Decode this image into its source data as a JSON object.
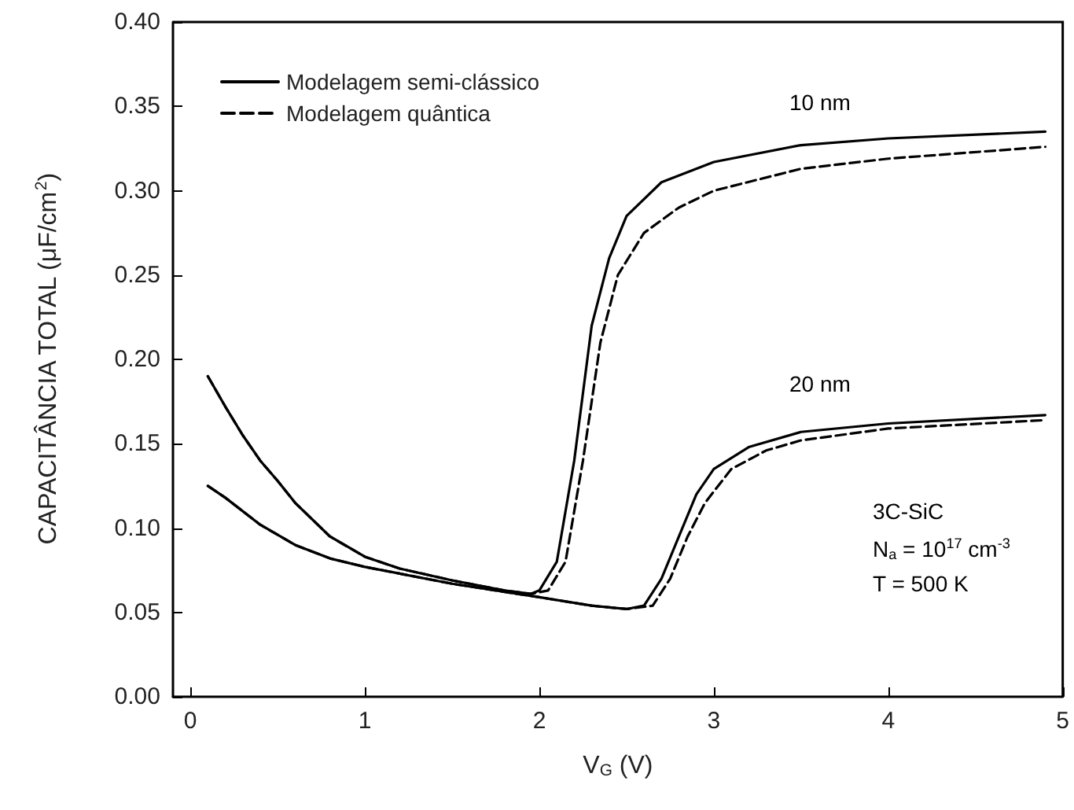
{
  "chart_data": {
    "type": "line",
    "xlabel": "V$_{G}$ (V)",
    "ylabel": "CAPACITÂNCIA TOTAL (μF/cm$^{2}$)",
    "xlim": [
      -0.1,
      5
    ],
    "xticks": [
      0,
      1,
      2,
      3,
      4,
      5
    ],
    "ylim": [
      0,
      0.4
    ],
    "yticks": [
      {
        "value": 0,
        "label": "0.00"
      },
      {
        "value": 0.05,
        "label": "0.05"
      },
      {
        "value": 0.1,
        "label": "0.10"
      },
      {
        "value": 0.15,
        "label": "0.15"
      },
      {
        "value": 0.2,
        "label": "0.20"
      },
      {
        "value": 0.25,
        "label": "0.25"
      },
      {
        "value": 0.3,
        "label": "0.30"
      },
      {
        "value": 0.35,
        "label": "0.35"
      },
      {
        "value": 0.4,
        "label": "0.40"
      }
    ],
    "grid": false,
    "legend": "top left",
    "marker": "none",
    "series": [
      {
        "name": "Modelagem semi-clássico",
        "color": "#000000",
        "line_style": "solid",
        "x": [
          0.1,
          0.2,
          0.3,
          0.4,
          0.5,
          0.6,
          0.8,
          1.0,
          1.2,
          1.5,
          1.8,
          1.95,
          2.0,
          2.1,
          2.2,
          2.3,
          2.4,
          2.5,
          2.7,
          3.0,
          3.5,
          4.0,
          4.9
        ],
        "values": [
          0.19,
          0.172,
          0.155,
          0.14,
          0.128,
          0.115,
          0.095,
          0.083,
          0.076,
          0.069,
          0.063,
          0.061,
          0.063,
          0.08,
          0.14,
          0.22,
          0.26,
          0.285,
          0.305,
          0.317,
          0.327,
          0.331,
          0.335
        ]
      },
      {
        "name": "Modelagem quântica",
        "color": "#000000",
        "line_style": "dashed",
        "x": [
          0.1,
          0.2,
          0.3,
          0.4,
          0.5,
          0.6,
          0.8,
          1.0,
          1.2,
          1.5,
          1.8,
          1.95,
          2.05,
          2.15,
          2.25,
          2.35,
          2.45,
          2.6,
          2.8,
          3.0,
          3.5,
          4.0,
          4.9
        ],
        "values": [
          0.19,
          0.172,
          0.155,
          0.14,
          0.128,
          0.115,
          0.095,
          0.083,
          0.076,
          0.069,
          0.063,
          0.061,
          0.063,
          0.08,
          0.14,
          0.21,
          0.25,
          0.275,
          0.29,
          0.3,
          0.313,
          0.319,
          0.326
        ]
      },
      {
        "color": "#000000",
        "line_style": "solid",
        "x": [
          0.1,
          0.2,
          0.4,
          0.6,
          0.8,
          1.0,
          1.5,
          2.0,
          2.3,
          2.5,
          2.6,
          2.7,
          2.8,
          2.9,
          3.0,
          3.2,
          3.5,
          4.0,
          4.9
        ],
        "values": [
          0.125,
          0.118,
          0.102,
          0.09,
          0.082,
          0.077,
          0.067,
          0.059,
          0.054,
          0.052,
          0.054,
          0.07,
          0.095,
          0.12,
          0.135,
          0.148,
          0.157,
          0.162,
          0.167
        ]
      },
      {
        "color": "#000000",
        "line_style": "dashed",
        "x": [
          0.1,
          0.2,
          0.4,
          0.6,
          0.8,
          1.0,
          1.5,
          2.0,
          2.3,
          2.5,
          2.65,
          2.75,
          2.85,
          2.95,
          3.1,
          3.3,
          3.5,
          4.0,
          4.9
        ],
        "values": [
          0.125,
          0.118,
          0.102,
          0.09,
          0.082,
          0.077,
          0.067,
          0.059,
          0.054,
          0.052,
          0.054,
          0.07,
          0.095,
          0.115,
          0.135,
          0.146,
          0.152,
          0.159,
          0.164
        ]
      }
    ],
    "annotations": [
      "10 nm",
      "20 nm",
      "3C-SiC",
      "N$_{a}$ = 10$^{17}$ cm$^{-3}$",
      "T = 500 K"
    ]
  }
}
